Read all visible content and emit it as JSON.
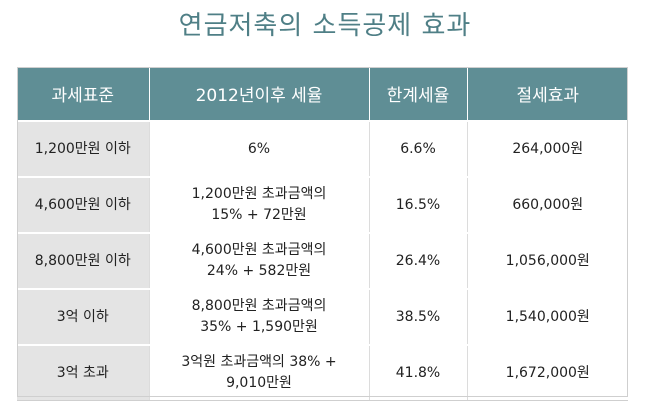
{
  "title": "연금저축의 소득공제 효과",
  "table": {
    "headers": [
      "과세표준",
      "2012년이후 세율",
      "한계세율",
      "절세효과"
    ],
    "rows": [
      {
        "bracket": "1,200만원 이하",
        "rate_line1": "6%",
        "rate_line2": "",
        "marginal": "6.6%",
        "saving": "264,000원"
      },
      {
        "bracket": "4,600만원 이하",
        "rate_line1": "1,200만원 초과금액의",
        "rate_line2": "15% + 72만원",
        "marginal": "16.5%",
        "saving": "660,000원"
      },
      {
        "bracket": "8,800만원 이하",
        "rate_line1": "4,600만원 초과금액의",
        "rate_line2": "24% + 582만원",
        "marginal": "26.4%",
        "saving": "1,056,000원"
      },
      {
        "bracket": "3억 이하",
        "rate_line1": "8,800만원 초과금액의",
        "rate_line2": "35% + 1,590만원",
        "marginal": "38.5%",
        "saving": "1,540,000원"
      },
      {
        "bracket": "3억 초과",
        "rate_line1": "3억원 초과금액의 38% +",
        "rate_line2": "9,010만원",
        "marginal": "41.8%",
        "saving": "1,672,000원"
      }
    ]
  }
}
